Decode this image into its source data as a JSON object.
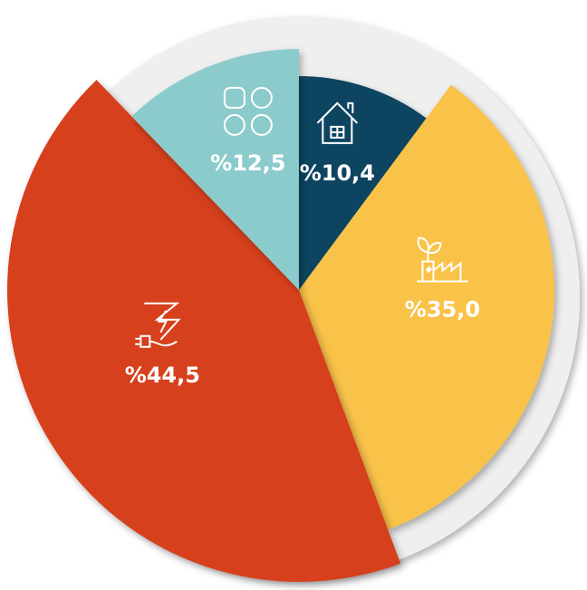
{
  "chart_data": {
    "type": "pie",
    "values": [
      10.4,
      35.0,
      44.5,
      12.5
    ],
    "value_labels": [
      "%10,4",
      "%35,0",
      "%44,5",
      "%12,5"
    ],
    "colors": [
      "#0f4560",
      "#f9c24a",
      "#d63f1c",
      "#8ccbcb"
    ]
  }
}
